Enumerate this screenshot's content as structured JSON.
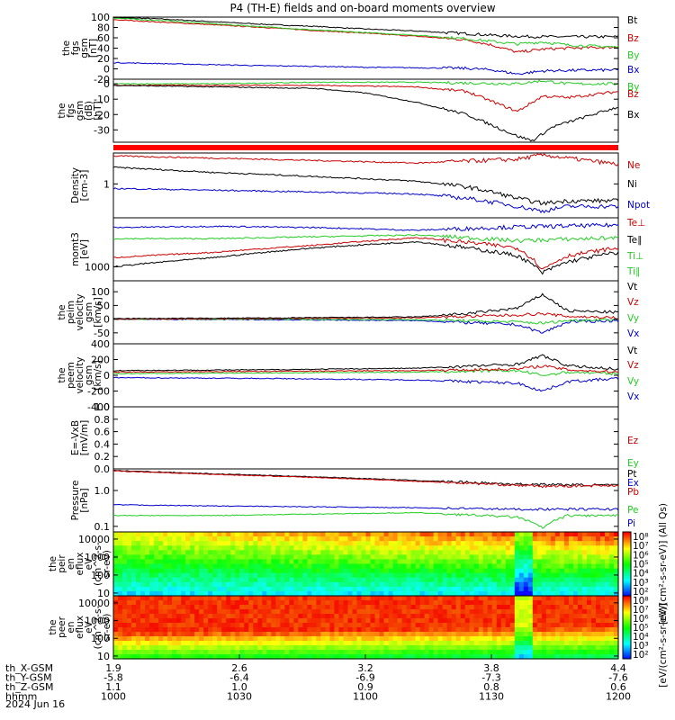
{
  "title": "P4 (TH-E) fields and on-board moments overview",
  "date_label": "2024 Jun 16",
  "colors": {
    "black": "#000000",
    "red": "#cc0000",
    "green": "#22cc22",
    "blue": "#0000cc"
  },
  "chart_data": [
    {
      "type": "line",
      "id": "fgs-gsm",
      "ylabel": [
        "the",
        "fgs",
        "gsm",
        "[nT]"
      ],
      "yticks": [
        "100",
        "80",
        "60",
        "40",
        "20",
        "0",
        "-20"
      ],
      "ylim": [
        -20,
        100
      ],
      "legend": [
        {
          "name": "Bt",
          "color": "#000000"
        },
        {
          "name": "Bz",
          "color": "#cc0000"
        },
        {
          "name": "By",
          "color": "#22cc22"
        },
        {
          "name": "Bx",
          "color": "#0000cc"
        }
      ],
      "series": [
        {
          "name": "Bt",
          "color": "#000000",
          "x": [
            0,
            0.1,
            0.2,
            0.3,
            0.4,
            0.5,
            0.6,
            0.7,
            0.75,
            0.8,
            0.85,
            0.9,
            1.0
          ],
          "y": [
            100,
            96,
            91,
            86,
            82,
            77,
            73,
            68,
            65,
            63,
            62,
            62,
            62
          ]
        },
        {
          "name": "Bz",
          "color": "#cc0000",
          "x": [
            0,
            0.1,
            0.2,
            0.3,
            0.4,
            0.5,
            0.6,
            0.7,
            0.75,
            0.8,
            0.85,
            0.9,
            1.0
          ],
          "y": [
            95,
            90,
            85,
            80,
            74,
            69,
            63,
            56,
            46,
            32,
            38,
            40,
            42
          ]
        },
        {
          "name": "By",
          "color": "#22cc22",
          "x": [
            0,
            0.1,
            0.2,
            0.3,
            0.4,
            0.5,
            0.6,
            0.7,
            0.75,
            0.8,
            0.85,
            0.9,
            1.0
          ],
          "y": [
            98,
            93,
            87,
            81,
            75,
            70,
            65,
            58,
            53,
            48,
            52,
            46,
            42
          ]
        },
        {
          "name": "Bx",
          "color": "#0000cc",
          "x": [
            0,
            0.1,
            0.2,
            0.3,
            0.4,
            0.5,
            0.6,
            0.7,
            0.75,
            0.8,
            0.85,
            0.9,
            1.0
          ],
          "y": [
            12,
            10,
            8,
            6,
            5,
            3,
            2,
            1,
            -2,
            -10,
            -4,
            -3,
            -2
          ]
        }
      ]
    },
    {
      "type": "line",
      "id": "fgs-gsm-dB",
      "ylabel": [
        "the",
        "fgs",
        "gsm",
        "(dB)",
        "[nT]"
      ],
      "yticks": [
        "0",
        "-10",
        "-20",
        "-30"
      ],
      "ylim": [
        -38,
        3
      ],
      "legend": [
        {
          "name": "By",
          "color": "#22cc22"
        },
        {
          "name": "Bz",
          "color": "#cc0000"
        },
        {
          "name": "Bx",
          "color": "#000000"
        }
      ],
      "series": [
        {
          "name": "By",
          "color": "#22cc22",
          "x": [
            0,
            0.2,
            0.4,
            0.6,
            0.8,
            0.85,
            0.9,
            1.0
          ],
          "y": [
            0,
            0,
            1,
            1,
            0,
            2,
            0,
            0
          ]
        },
        {
          "name": "Bz",
          "color": "#cc0000",
          "x": [
            0,
            0.2,
            0.4,
            0.6,
            0.7,
            0.8,
            0.85,
            0.9,
            1.0
          ],
          "y": [
            -1,
            -1,
            -1,
            -2,
            -5,
            -18,
            -8,
            -9,
            -5
          ]
        },
        {
          "name": "Bx",
          "color": "#000000",
          "x": [
            0,
            0.2,
            0.4,
            0.5,
            0.6,
            0.7,
            0.8,
            0.83,
            0.87,
            0.9,
            1.0
          ],
          "y": [
            -1,
            -2,
            -3,
            -6,
            -12,
            -20,
            -34,
            -37,
            -28,
            -25,
            -15
          ]
        }
      ]
    },
    {
      "type": "line",
      "id": "density",
      "ylabel": [
        "Density",
        "[cm-3]"
      ],
      "yticks": [
        "1"
      ],
      "ylim": [
        0.3,
        3.0
      ],
      "scale": "log",
      "legend": [
        {
          "name": "Ne",
          "color": "#cc0000"
        },
        {
          "name": "Ni",
          "color": "#000000"
        },
        {
          "name": "Npot",
          "color": "#0000cc"
        }
      ],
      "series": [
        {
          "name": "Ne",
          "color": "#cc0000",
          "x": [
            0,
            0.2,
            0.4,
            0.6,
            0.8,
            0.85,
            0.9,
            1.0
          ],
          "y": [
            2.7,
            2.5,
            2.3,
            2.1,
            2.4,
            2.8,
            2.5,
            2.0
          ]
        },
        {
          "name": "Ni",
          "color": "#000000",
          "x": [
            0,
            0.2,
            0.4,
            0.6,
            0.7,
            0.8,
            0.85,
            0.9,
            1.0
          ],
          "y": [
            1.8,
            1.5,
            1.3,
            1.1,
            0.9,
            0.6,
            0.5,
            0.55,
            0.55
          ]
        },
        {
          "name": "Npot",
          "color": "#0000cc",
          "x": [
            0,
            0.2,
            0.4,
            0.6,
            0.7,
            0.8,
            0.85,
            0.9,
            1.0
          ],
          "y": [
            0.85,
            0.8,
            0.75,
            0.7,
            0.6,
            0.45,
            0.38,
            0.45,
            0.45
          ]
        }
      ]
    },
    {
      "type": "line",
      "id": "moms-temp",
      "ylabel": [
        "momt3",
        "[eV]"
      ],
      "yticks": [
        "1000"
      ],
      "ylim": [
        600,
        6000
      ],
      "scale": "log",
      "legend": [
        {
          "name": "Te⊥",
          "color": "#cc0000"
        },
        {
          "name": "Te∥",
          "color": "#000000"
        },
        {
          "name": "Ti⊥",
          "color": "#22cc22"
        },
        {
          "name": "Ti∥",
          "color": "#22cc22"
        }
      ],
      "series": [
        {
          "name": "Ti⊥",
          "color": "#0000cc",
          "x": [
            0,
            0.2,
            0.4,
            0.6,
            0.8,
            1.0
          ],
          "y": [
            4200,
            4400,
            4200,
            3800,
            4300,
            4600
          ]
        },
        {
          "name": "Te∥",
          "color": "#22cc22",
          "x": [
            0,
            0.2,
            0.4,
            0.6,
            0.8,
            1.0
          ],
          "y": [
            2800,
            2800,
            3000,
            3200,
            2600,
            2900
          ]
        },
        {
          "name": "Te⊥",
          "color": "#cc0000",
          "x": [
            0,
            0.2,
            0.4,
            0.6,
            0.8,
            0.85,
            0.9,
            1.0
          ],
          "y": [
            1400,
            1700,
            2200,
            2900,
            2000,
            900,
            1500,
            2000
          ]
        },
        {
          "name": "Ti∥",
          "color": "#000000",
          "x": [
            0,
            0.2,
            0.4,
            0.6,
            0.8,
            0.85,
            0.9,
            1.0
          ],
          "y": [
            1000,
            1400,
            2000,
            2500,
            1500,
            800,
            1200,
            1700
          ]
        }
      ]
    },
    {
      "type": "line",
      "id": "peim-velocity",
      "ylabel": [
        "the",
        "peim",
        "velocity",
        "gsm",
        "[km/s]"
      ],
      "yticks": [
        "100",
        "50",
        "0",
        "-50"
      ],
      "ylim": [
        -90,
        140
      ],
      "legend": [
        {
          "name": "Vt",
          "color": "#000000"
        },
        {
          "name": "Vz",
          "color": "#cc0000"
        },
        {
          "name": "Vy",
          "color": "#22cc22"
        },
        {
          "name": "Vx",
          "color": "#0000cc"
        }
      ],
      "series": [
        {
          "name": "Vx",
          "color": "#0000cc",
          "x": [
            0,
            0.3,
            0.6,
            0.8,
            0.85,
            0.9,
            1.0
          ],
          "y": [
            0,
            -2,
            -5,
            -20,
            -50,
            -10,
            -5
          ]
        },
        {
          "name": "Vy",
          "color": "#22cc22",
          "x": [
            0,
            0.3,
            0.6,
            0.8,
            0.85,
            0.9,
            1.0
          ],
          "y": [
            0,
            0,
            -2,
            -10,
            -15,
            -5,
            0
          ]
        },
        {
          "name": "Vz",
          "color": "#cc0000",
          "x": [
            0,
            0.3,
            0.6,
            0.8,
            0.85,
            0.9,
            1.0
          ],
          "y": [
            0,
            2,
            5,
            15,
            20,
            10,
            5
          ]
        },
        {
          "name": "Vt",
          "color": "#000000",
          "x": [
            0,
            0.3,
            0.6,
            0.7,
            0.8,
            0.85,
            0.9,
            1.0
          ],
          "y": [
            2,
            4,
            8,
            20,
            40,
            90,
            30,
            25
          ]
        }
      ]
    },
    {
      "type": "line",
      "id": "peem-velocity",
      "ylabel": [
        "the",
        "peem",
        "velocity",
        "gsm",
        "[km/s]"
      ],
      "yticks": [
        "400",
        "200",
        "0",
        "-200",
        "-400"
      ],
      "ylim": [
        -400,
        400
      ],
      "legend": [
        {
          "name": "Vt",
          "color": "#000000"
        },
        {
          "name": "Vz",
          "color": "#cc0000"
        },
        {
          "name": "Vy",
          "color": "#22cc22"
        },
        {
          "name": "Vx",
          "color": "#0000cc"
        }
      ],
      "series": [
        {
          "name": "Vx",
          "color": "#0000cc",
          "x": [
            0,
            0.3,
            0.6,
            0.8,
            0.85,
            0.9,
            1.0
          ],
          "y": [
            -30,
            -40,
            -60,
            -100,
            -200,
            -80,
            -40
          ]
        },
        {
          "name": "Vy",
          "color": "#22cc22",
          "x": [
            0,
            0.3,
            0.6,
            0.8,
            0.85,
            0.9,
            1.0
          ],
          "y": [
            20,
            30,
            40,
            60,
            0,
            40,
            20
          ]
        },
        {
          "name": "Vz",
          "color": "#cc0000",
          "x": [
            0,
            0.3,
            0.6,
            0.8,
            0.85,
            0.9,
            1.0
          ],
          "y": [
            40,
            50,
            60,
            80,
            120,
            70,
            40
          ]
        },
        {
          "name": "Vt",
          "color": "#000000",
          "x": [
            0,
            0.3,
            0.6,
            0.8,
            0.85,
            0.9,
            1.0
          ],
          "y": [
            60,
            70,
            90,
            140,
            250,
            120,
            80
          ]
        }
      ]
    },
    {
      "type": "line",
      "id": "efield",
      "ylabel": [
        "E=-VxB",
        "[mV/m]"
      ],
      "yticks": [
        "1.0",
        "0.8",
        "0.6",
        "0.4",
        "0.2",
        "0.0"
      ],
      "ylim": [
        0,
        1
      ],
      "legend": [
        {
          "name": "Ez",
          "color": "#cc0000"
        },
        {
          "name": "Ey",
          "color": "#22cc22"
        },
        {
          "name": "Ex",
          "color": "#0000cc"
        }
      ],
      "series": []
    },
    {
      "type": "line",
      "id": "pressure",
      "ylabel": [
        "Pressure",
        "[nPa]"
      ],
      "yticks": [
        "1.0",
        "0.1"
      ],
      "ylim": [
        0.07,
        4.0
      ],
      "scale": "log",
      "legend": [
        {
          "name": "Pt",
          "color": "#000000"
        },
        {
          "name": "Pb",
          "color": "#cc0000"
        },
        {
          "name": "Pe",
          "color": "#22cc22"
        },
        {
          "name": "Pi",
          "color": "#0000cc"
        }
      ],
      "series": [
        {
          "name": "Pt",
          "color": "#000000",
          "x": [
            0,
            0.2,
            0.4,
            0.6,
            0.8,
            1.0
          ],
          "y": [
            3.6,
            2.9,
            2.4,
            1.9,
            1.5,
            1.4
          ]
        },
        {
          "name": "Pb",
          "color": "#cc0000",
          "x": [
            0,
            0.2,
            0.4,
            0.6,
            0.8,
            0.85,
            1.0
          ],
          "y": [
            3.5,
            2.8,
            2.3,
            1.8,
            1.4,
            1.3,
            1.4
          ]
        },
        {
          "name": "Pe",
          "color": "#22cc22",
          "x": [
            0,
            0.2,
            0.4,
            0.6,
            0.8,
            0.85,
            0.9,
            1.0
          ],
          "y": [
            0.2,
            0.2,
            0.22,
            0.24,
            0.18,
            0.09,
            0.2,
            0.2
          ]
        },
        {
          "name": "Pi",
          "color": "#0000cc",
          "x": [
            0,
            0.2,
            0.4,
            0.6,
            0.8,
            1.0
          ],
          "y": [
            0.4,
            0.37,
            0.35,
            0.33,
            0.3,
            0.3
          ]
        }
      ]
    },
    {
      "type": "heatmap",
      "id": "peir-eflux",
      "ylabel": [
        "the",
        "peir",
        "en",
        "eflux",
        "eV",
        "(cm^2-s-",
        "sr-eV)"
      ],
      "yticks": [
        "10000",
        "1000",
        "100",
        "10"
      ],
      "ylim": [
        7,
        25000
      ],
      "scale": "log"
    },
    {
      "type": "heatmap",
      "id": "peer-eflux",
      "ylabel": [
        "the",
        "peer",
        "en",
        "eflux",
        "eV",
        "(cm^2-s-",
        "sr-eV)"
      ],
      "yticks": [
        "10000",
        "1000",
        "100",
        "10"
      ],
      "ylim": [
        7,
        25000
      ],
      "scale": "log"
    }
  ],
  "colorbars": [
    {
      "labels": [
        "10⁸",
        "10⁷",
        "10⁶",
        "10⁵",
        "10⁴",
        "10³",
        "10²"
      ],
      "title": "[eV/(cm²-s-sr-eV)] (All Qs)"
    },
    {
      "labels": [
        "10⁸",
        "10⁷",
        "10⁶",
        "10⁵",
        "10⁴",
        "10³",
        "10²"
      ],
      "title": "[eV/(cm²-s-sr-eV)]"
    }
  ],
  "xaxis": {
    "rows": [
      {
        "label": "th_X-GSM",
        "values": [
          "1.9",
          "2.6",
          "3.2",
          "3.8",
          "4.4"
        ]
      },
      {
        "label": "th_Y-GSM",
        "values": [
          "-5.8",
          "-6.4",
          "-6.9",
          "-7.3",
          "-7.6"
        ]
      },
      {
        "label": "th_Z-GSM",
        "values": [
          "1.1",
          "1.0",
          "0.9",
          "0.8",
          "0.6"
        ]
      },
      {
        "label": "hhmm",
        "values": [
          "1000",
          "1030",
          "1100",
          "1130",
          "1200"
        ]
      }
    ]
  }
}
